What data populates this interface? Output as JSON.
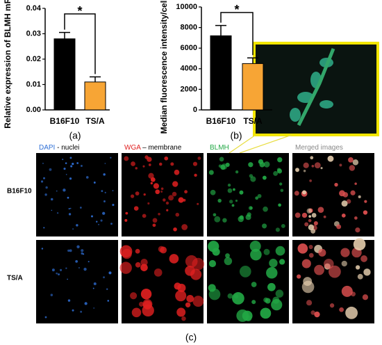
{
  "chart_data": [
    {
      "type": "bar",
      "ylabel": "Relative expression of BLMH mRNA",
      "categories": [
        "B16F10",
        "TS/A"
      ],
      "values": [
        0.028,
        0.011
      ],
      "errors": [
        0.0025,
        0.002
      ],
      "colors": [
        "#000000",
        "#f7a535"
      ],
      "ylim": [
        0,
        0.04
      ],
      "yticks": [
        {
          "value": 0,
          "label": "0.00"
        },
        {
          "value": 0.01,
          "label": "0.01"
        },
        {
          "value": 0.02,
          "label": "0.02"
        },
        {
          "value": 0.03,
          "label": "0.03"
        },
        {
          "value": 0.04,
          "label": "0.04"
        }
      ],
      "annotation": "*",
      "panel_label": "(a)"
    },
    {
      "type": "bar",
      "ylabel": "Median fluorescence intensity/cell (a.u.)",
      "categories": [
        "B16F10",
        "TS/A"
      ],
      "values": [
        7200,
        4500
      ],
      "errors": [
        1000,
        550
      ],
      "colors": [
        "#000000",
        "#f7a535"
      ],
      "ylim": [
        0,
        10000
      ],
      "yticks": [
        0,
        2000,
        4000,
        6000,
        8000,
        10000
      ],
      "annotation": "*",
      "panel_label": "(b)"
    }
  ],
  "microscopy": {
    "columns": [
      {
        "stain": "DAPI",
        "color": "#2f6fd6",
        "desc": " - nuclei"
      },
      {
        "stain": "WGA",
        "color": "#e02020",
        "desc": " – membrane"
      },
      {
        "stain": "BLMH",
        "color": "#22a845"
      },
      {
        "stain": "Merged images",
        "color": "#888888"
      }
    ],
    "rows": [
      "B16F10",
      "TS/A"
    ],
    "panel_label": "(c)"
  }
}
